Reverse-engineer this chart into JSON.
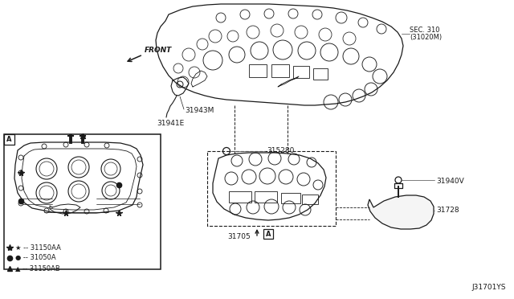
{
  "background_color": "#ffffff",
  "line_color": "#1a1a1a",
  "text_color": "#1a1a1a",
  "gray_color": "#666666",
  "labels": {
    "front_arrow": "FRONT",
    "sec310_line1": "SEC. 310",
    "sec310_line2": "(31020M)",
    "part_31943M": "31943M",
    "part_31941E": "31941E",
    "part_315280": "315280",
    "part_31705": "31705",
    "part_31940V": "31940V",
    "part_31728": "31728",
    "legend_star": "-- 31150AA",
    "legend_dot": "-- 31050A",
    "legend_tri": "-- 31150AB",
    "diagram_id": "J31701YS",
    "box_A": "A"
  },
  "figsize": [
    6.4,
    3.72
  ],
  "dpi": 100
}
